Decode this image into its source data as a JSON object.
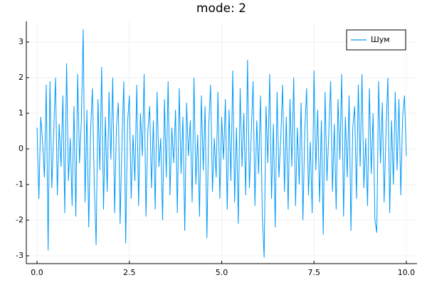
{
  "chart_data": {
    "type": "line",
    "title": "mode: 2",
    "x": [
      0,
      0.05,
      0.1,
      0.15,
      0.2,
      0.25,
      0.3,
      0.35,
      0.4,
      0.45,
      0.5,
      0.55,
      0.6,
      0.65,
      0.7,
      0.75,
      0.8,
      0.85,
      0.9,
      0.95,
      1,
      1.05,
      1.1,
      1.15,
      1.2,
      1.25,
      1.3,
      1.35,
      1.4,
      1.45,
      1.5,
      1.55,
      1.6,
      1.65,
      1.7,
      1.75,
      1.8,
      1.85,
      1.9,
      1.95,
      2,
      2.05,
      2.1,
      2.15,
      2.2,
      2.25,
      2.3,
      2.35,
      2.4,
      2.45,
      2.5,
      2.55,
      2.6,
      2.65,
      2.7,
      2.75,
      2.8,
      2.85,
      2.9,
      2.95,
      3,
      3.05,
      3.1,
      3.15,
      3.2,
      3.25,
      3.3,
      3.35,
      3.4,
      3.45,
      3.5,
      3.55,
      3.6,
      3.65,
      3.7,
      3.75,
      3.8,
      3.85,
      3.9,
      3.95,
      4,
      4.05,
      4.1,
      4.15,
      4.2,
      4.25,
      4.3,
      4.35,
      4.4,
      4.45,
      4.5,
      4.55,
      4.6,
      4.65,
      4.7,
      4.75,
      4.8,
      4.85,
      4.9,
      4.95,
      5,
      5.05,
      5.1,
      5.15,
      5.2,
      5.25,
      5.3,
      5.35,
      5.4,
      5.45,
      5.5,
      5.55,
      5.6,
      5.65,
      5.7,
      5.75,
      5.8,
      5.85,
      5.9,
      5.95,
      6,
      6.05,
      6.1,
      6.15,
      6.2,
      6.25,
      6.3,
      6.35,
      6.4,
      6.45,
      6.5,
      6.55,
      6.6,
      6.65,
      6.7,
      6.75,
      6.8,
      6.85,
      6.9,
      6.95,
      7,
      7.05,
      7.1,
      7.15,
      7.2,
      7.25,
      7.3,
      7.35,
      7.4,
      7.45,
      7.5,
      7.55,
      7.6,
      7.65,
      7.7,
      7.75,
      7.8,
      7.85,
      7.9,
      7.95,
      8,
      8.05,
      8.1,
      8.15,
      8.2,
      8.25,
      8.3,
      8.35,
      8.4,
      8.45,
      8.5,
      8.55,
      8.6,
      8.65,
      8.7,
      8.75,
      8.8,
      8.85,
      8.9,
      8.95,
      9,
      9.05,
      9.1,
      9.15,
      9.2,
      9.25,
      9.3,
      9.35,
      9.4,
      9.45,
      9.5,
      9.55,
      9.6,
      9.65,
      9.7,
      9.75,
      9.8,
      9.85,
      9.9,
      9.95,
      10
    ],
    "series": [
      {
        "name": "Шум",
        "color": "#009af9",
        "values": [
          0.6,
          -1.4,
          0.9,
          0.2,
          -0.8,
          1.8,
          -2.85,
          1.9,
          -1.1,
          0.4,
          2.0,
          -1.3,
          0.7,
          -0.5,
          1.5,
          -1.8,
          2.4,
          -0.9,
          0.3,
          -1.6,
          1.2,
          -1.9,
          2.1,
          -0.4,
          0.8,
          3.35,
          -1.5,
          1.1,
          -2.2,
          0.5,
          1.7,
          -1.0,
          -2.7,
          1.4,
          -0.6,
          2.3,
          -1.7,
          0.9,
          -1.2,
          1.6,
          -0.3,
          2.0,
          -1.8,
          0.6,
          1.3,
          -2.1,
          0.2,
          1.9,
          -2.65,
          0.7,
          1.5,
          -1.4,
          0.4,
          -0.9,
          1.8,
          -1.6,
          1.0,
          -0.2,
          2.1,
          -1.9,
          0.5,
          1.2,
          -1.1,
          0.8,
          -1.7,
          1.6,
          -0.5,
          0.3,
          -2.0,
          1.4,
          -0.8,
          1.9,
          -1.3,
          0.6,
          -0.4,
          1.1,
          -1.8,
          1.7,
          -0.7,
          0.9,
          -2.3,
          1.3,
          -0.2,
          0.8,
          -1.5,
          2.0,
          -1.0,
          0.4,
          -1.9,
          1.5,
          -0.6,
          1.2,
          -2.5,
          0.7,
          1.8,
          -1.2,
          0.3,
          -0.8,
          1.6,
          -1.4,
          0.9,
          -0.3,
          1.4,
          -1.7,
          1.1,
          -0.9,
          2.2,
          -1.5,
          0.6,
          -2.1,
          1.7,
          -0.5,
          1.0,
          -1.3,
          2.5,
          -1.1,
          0.4,
          1.9,
          -1.6,
          0.8,
          -0.7,
          1.5,
          -1.9,
          -3.05,
          1.2,
          -0.4,
          2.1,
          -1.4,
          0.7,
          -2.2,
          1.6,
          -0.8,
          0.3,
          1.8,
          -1.2,
          0.9,
          -1.7,
          1.4,
          -0.5,
          2.0,
          -1.6,
          0.6,
          -1.0,
          1.3,
          -2.0,
          0.5,
          1.7,
          -1.3,
          0.2,
          -1.8,
          2.2,
          -0.6,
          1.1,
          -1.5,
          0.8,
          -2.4,
          1.6,
          -0.9,
          0.4,
          1.9,
          -1.2,
          0.7,
          -1.7,
          1.4,
          -0.3,
          2.1,
          -1.9,
          0.9,
          -0.8,
          1.5,
          -2.3,
          0.6,
          1.2,
          -1.4,
          1.8,
          -0.5,
          2.1,
          -1.1,
          0.3,
          -1.6,
          1.7,
          -0.7,
          1.0,
          -2.0,
          -2.35,
          1.9,
          -0.4,
          1.3,
          -1.5,
          0.5,
          2.0,
          -1.8,
          0.8,
          -1.0,
          1.6,
          -0.6,
          1.4,
          -1.3,
          0.9,
          1.5,
          -0.2
        ]
      }
    ],
    "xlim": [
      -0.29,
      10.29
    ],
    "ylim": [
      -3.22,
      3.58
    ],
    "xticks": [
      {
        "value": 0,
        "label": "0.0"
      },
      2.5,
      {
        "value": 5,
        "label": "5.0"
      },
      7.5,
      {
        "value": 10,
        "label": "10.0"
      }
    ],
    "yticks": [
      -3,
      -2,
      -1,
      0,
      1,
      2,
      3
    ],
    "grid": true,
    "legend": "top-right"
  }
}
